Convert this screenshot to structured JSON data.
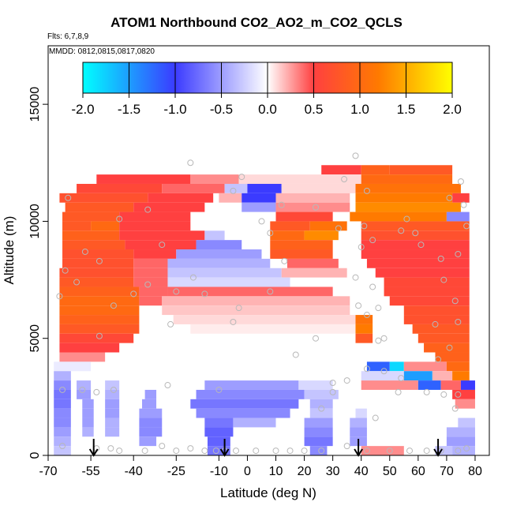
{
  "chart_data": {
    "type": "heatmap",
    "title": "ATOM1 Northbound CO2_AO2_m_CO2_QCLS",
    "flights_text": "Flts: 6,7,8,9",
    "mmdd_text": "MMDD: 0812,0815,0817,0820",
    "xlabel": "Latitude (deg N)",
    "ylabel": "Altitude (m)",
    "xlim": [
      -70,
      85
    ],
    "ylim": [
      0,
      17500
    ],
    "x_ticks": [
      -70,
      -55,
      -40,
      -25,
      -10,
      0,
      10,
      20,
      30,
      40,
      50,
      60,
      70,
      80
    ],
    "y_ticks": [
      0,
      5000,
      10000,
      15000
    ],
    "colorbar": {
      "ticks": [
        "-2.0",
        "-1.5",
        "-1.0",
        "-0.5",
        "0.0",
        "0.5",
        "1.0",
        "1.5",
        "2.0"
      ],
      "range": [
        -2.0,
        2.0
      ],
      "colors": [
        "#00ffff",
        "#3b3bff",
        "#ffffff",
        "#ff3b3b",
        "#ff8c00",
        "#ffff00"
      ]
    },
    "cell_height_m": 400,
    "rows": [
      {
        "alt": 12000,
        "segments": [
          [
            26,
            40,
            0.5
          ],
          [
            40,
            50,
            0.9
          ],
          [
            50,
            72,
            0.8
          ]
        ]
      },
      {
        "alt": 11600,
        "segments": [
          [
            -53,
            -20,
            0.5
          ],
          [
            -20,
            -3,
            0.3
          ],
          [
            -3,
            40,
            0.1
          ],
          [
            40,
            72,
            1.0
          ]
        ]
      },
      {
        "alt": 11200,
        "segments": [
          [
            -60,
            -30,
            0.6
          ],
          [
            -30,
            -8,
            0.4
          ],
          [
            -8,
            0,
            -0.3
          ],
          [
            0,
            12,
            -1.0
          ],
          [
            12,
            38,
            0.1
          ],
          [
            38,
            75,
            1.1
          ]
        ]
      },
      {
        "alt": 10800,
        "segments": [
          [
            -66,
            -35,
            0.7
          ],
          [
            -35,
            -12,
            0.5
          ],
          [
            -10,
            -2,
            0.2
          ],
          [
            -2,
            10,
            -1.0
          ],
          [
            10,
            36,
            0.2
          ],
          [
            38,
            72,
            1.2
          ],
          [
            72,
            78,
            0.5
          ]
        ]
      },
      {
        "alt": 10400,
        "segments": [
          [
            -64,
            -40,
            0.8
          ],
          [
            -40,
            -15,
            0.5
          ],
          [
            -2,
            10,
            -0.5
          ],
          [
            10,
            36,
            0.3
          ],
          [
            38,
            75,
            1.3
          ]
        ]
      },
      {
        "alt": 10000,
        "segments": [
          [
            -65,
            -45,
            0.8
          ],
          [
            -45,
            -20,
            0.5
          ],
          [
            10,
            30,
            0.6
          ],
          [
            36,
            70,
            1.2
          ],
          [
            70,
            78,
            -0.6
          ]
        ]
      },
      {
        "alt": 9600,
        "segments": [
          [
            -65,
            -55,
            0.8
          ],
          [
            -55,
            -45,
            1.0
          ],
          [
            -45,
            -20,
            0.5
          ],
          [
            8,
            22,
            0.8
          ],
          [
            22,
            35,
            1.1
          ],
          [
            40,
            78,
            0.8
          ]
        ]
      },
      {
        "alt": 9200,
        "segments": [
          [
            -65,
            -45,
            0.9
          ],
          [
            -45,
            -15,
            0.5
          ],
          [
            -15,
            -8,
            -0.3
          ],
          [
            8,
            20,
            1.0
          ],
          [
            20,
            32,
            1.3
          ],
          [
            40,
            78,
            0.7
          ]
        ]
      },
      {
        "alt": 8800,
        "segments": [
          [
            -65,
            -43,
            0.8
          ],
          [
            -43,
            -18,
            0.5
          ],
          [
            -18,
            -2,
            -0.6
          ],
          [
            8,
            30,
            0.9
          ],
          [
            40,
            78,
            0.5
          ]
        ]
      },
      {
        "alt": 8400,
        "segments": [
          [
            -65,
            -40,
            0.7
          ],
          [
            -40,
            -25,
            0.5
          ],
          [
            -25,
            5,
            -0.5
          ],
          [
            8,
            30,
            0.8
          ],
          [
            40,
            78,
            0.5
          ]
        ]
      },
      {
        "alt": 8000,
        "segments": [
          [
            -65,
            -40,
            0.7
          ],
          [
            -40,
            -28,
            0.4
          ],
          [
            -28,
            8,
            -0.4
          ],
          [
            14,
            32,
            0.4
          ],
          [
            42,
            78,
            0.5
          ]
        ]
      },
      {
        "alt": 7600,
        "segments": [
          [
            -66,
            -40,
            0.7
          ],
          [
            -40,
            -28,
            0.4
          ],
          [
            -28,
            12,
            -0.3
          ],
          [
            12,
            35,
            0.2
          ],
          [
            45,
            78,
            0.5
          ]
        ]
      },
      {
        "alt": 7200,
        "segments": [
          [
            -66,
            -40,
            0.8
          ],
          [
            -40,
            -28,
            0.4
          ],
          [
            -28,
            15,
            -0.2
          ],
          [
            48,
            78,
            0.6
          ]
        ]
      },
      {
        "alt": 6800,
        "segments": [
          [
            -66,
            -38,
            0.9
          ],
          [
            -38,
            -28,
            0.4
          ],
          [
            -28,
            30,
            0.4
          ],
          [
            48,
            78,
            0.6
          ]
        ]
      },
      {
        "alt": 6400,
        "segments": [
          [
            -66,
            -38,
            1.0
          ],
          [
            -38,
            -30,
            0.4
          ],
          [
            -30,
            36,
            0.2
          ],
          [
            50,
            78,
            0.6
          ]
        ]
      },
      {
        "alt": 6000,
        "segments": [
          [
            -66,
            -38,
            1.0
          ],
          [
            -30,
            36,
            0.15
          ],
          [
            55,
            78,
            0.7
          ]
        ]
      },
      {
        "alt": 5600,
        "segments": [
          [
            -66,
            -38,
            0.9
          ],
          [
            -26,
            38,
            0.1
          ],
          [
            38,
            44,
            1.1
          ],
          [
            55,
            78,
            0.7
          ]
        ]
      },
      {
        "alt": 5200,
        "segments": [
          [
            -66,
            -38,
            0.8
          ],
          [
            -20,
            38,
            0.05
          ],
          [
            38,
            44,
            1.2
          ],
          [
            58,
            78,
            0.8
          ]
        ]
      },
      {
        "alt": 4800,
        "segments": [
          [
            -66,
            -40,
            0.6
          ],
          [
            38,
            44,
            0.8
          ],
          [
            60,
            78,
            0.8
          ]
        ]
      },
      {
        "alt": 4400,
        "segments": [
          [
            -66,
            -45,
            0.5
          ],
          [
            62,
            78,
            0.9
          ]
        ]
      },
      {
        "alt": 4000,
        "segments": [
          [
            -66,
            -50,
            0.3
          ],
          [
            66,
            78,
            0.9
          ]
        ]
      },
      {
        "alt": 3600,
        "segments": [
          [
            -68,
            -55,
            -0.1
          ],
          [
            42,
            50,
            -1.2
          ],
          [
            50,
            55,
            -1.8
          ],
          [
            55,
            70,
            0.3
          ],
          [
            70,
            78,
            1.0
          ]
        ]
      },
      {
        "alt": 3200,
        "segments": [
          [
            -68,
            -62,
            -0.4
          ],
          [
            40,
            55,
            -0.2
          ],
          [
            55,
            65,
            -1.5
          ],
          [
            65,
            72,
            0.2
          ],
          [
            72,
            78,
            1.2
          ]
        ]
      },
      {
        "alt": 2800,
        "segments": [
          [
            -68,
            -62,
            -0.6
          ],
          [
            -60,
            -55,
            -0.4
          ],
          [
            -50,
            -45,
            -0.3
          ],
          [
            -15,
            18,
            -0.5
          ],
          [
            18,
            30,
            -0.2
          ],
          [
            40,
            60,
            0.3
          ],
          [
            60,
            68,
            -1.2
          ],
          [
            68,
            75,
            0.4
          ],
          [
            75,
            80,
            -1.0
          ]
        ]
      },
      {
        "alt": 2400,
        "segments": [
          [
            -68,
            -62,
            -0.7
          ],
          [
            -60,
            -55,
            -0.5
          ],
          [
            -50,
            -45,
            -0.4
          ],
          [
            -36,
            -32,
            -0.5
          ],
          [
            -18,
            20,
            -0.6
          ],
          [
            20,
            32,
            -0.3
          ],
          [
            72,
            80,
            0.5
          ]
        ]
      },
      {
        "alt": 2000,
        "segments": [
          [
            -68,
            -62,
            -0.7
          ],
          [
            -58,
            -54,
            -0.5
          ],
          [
            -50,
            -45,
            -0.5
          ],
          [
            -37,
            -32,
            -0.5
          ],
          [
            -20,
            18,
            -0.7
          ],
          [
            22,
            30,
            -0.4
          ],
          [
            73,
            80,
            0.3
          ]
        ]
      },
      {
        "alt": 1600,
        "segments": [
          [
            -68,
            -62,
            -0.6
          ],
          [
            -58,
            -54,
            -0.5
          ],
          [
            -50,
            -45,
            -0.5
          ],
          [
            -38,
            -30,
            -0.5
          ],
          [
            -18,
            15,
            -0.6
          ],
          [
            22,
            30,
            -0.3
          ],
          [
            38,
            42,
            -0.2
          ]
        ]
      },
      {
        "alt": 1200,
        "segments": [
          [
            -68,
            -62,
            -0.6
          ],
          [
            -58,
            -54,
            -0.5
          ],
          [
            -50,
            -45,
            -0.4
          ],
          [
            -38,
            -30,
            -0.6
          ],
          [
            -15,
            -5,
            -0.7
          ],
          [
            -5,
            10,
            -0.4
          ],
          [
            20,
            30,
            -0.5
          ],
          [
            36,
            42,
            -0.4
          ],
          [
            74,
            80,
            -0.3
          ]
        ]
      },
      {
        "alt": 800,
        "segments": [
          [
            -68,
            -62,
            -0.5
          ],
          [
            -58,
            -54,
            -0.4
          ],
          [
            -50,
            -45,
            -0.4
          ],
          [
            -38,
            -30,
            -0.6
          ],
          [
            -15,
            -5,
            -0.8
          ],
          [
            20,
            30,
            -0.6
          ],
          [
            36,
            42,
            -0.5
          ],
          [
            70,
            80,
            -0.4
          ]
        ]
      },
      {
        "alt": 400,
        "segments": [
          [
            -68,
            -62,
            -0.4
          ],
          [
            -38,
            -32,
            -0.5
          ],
          [
            -14,
            -6,
            -0.8
          ],
          [
            20,
            30,
            -0.7
          ],
          [
            36,
            42,
            -0.5
          ],
          [
            70,
            80,
            -0.5
          ]
        ]
      },
      {
        "alt": 0,
        "segments": [
          [
            -68,
            -62,
            -0.3
          ],
          [
            -14,
            -6,
            -0.7
          ],
          [
            22,
            28,
            -0.6
          ],
          [
            40,
            55,
            0.3
          ],
          [
            66,
            72,
            -0.3
          ],
          [
            72,
            80,
            -0.4
          ]
        ]
      }
    ],
    "sample_points": [
      [
        -63,
        11000
      ],
      [
        -57,
        8700
      ],
      [
        -52,
        8300
      ],
      [
        -45,
        10100
      ],
      [
        -40,
        6900
      ],
      [
        -35,
        10500
      ],
      [
        -47,
        6400
      ],
      [
        -52,
        5100
      ],
      [
        -66,
        6800
      ],
      [
        -64,
        7900
      ],
      [
        -60,
        7400
      ],
      [
        -47,
        2800
      ],
      [
        -65,
        2800
      ],
      [
        -58,
        2800
      ],
      [
        -53,
        2700
      ],
      [
        -28,
        3000
      ],
      [
        -10,
        2800
      ],
      [
        -5,
        5700
      ],
      [
        -3,
        6300
      ],
      [
        5,
        10000
      ],
      [
        12,
        10700
      ],
      [
        8,
        9500
      ],
      [
        8,
        7000
      ],
      [
        13,
        8300
      ],
      [
        -25,
        7000
      ],
      [
        -19,
        7600
      ],
      [
        -35,
        7300
      ],
      [
        -15,
        6900
      ],
      [
        17,
        4300
      ],
      [
        24,
        5000
      ],
      [
        30,
        3100
      ],
      [
        30,
        2700
      ],
      [
        26,
        2000
      ],
      [
        38,
        7600
      ],
      [
        39,
        6400
      ],
      [
        42,
        6000
      ],
      [
        46,
        4900
      ],
      [
        48,
        5000
      ],
      [
        46,
        6300
      ],
      [
        44,
        9200
      ],
      [
        56,
        10100
      ],
      [
        40,
        8900
      ],
      [
        38,
        12800
      ],
      [
        34,
        11800
      ],
      [
        41,
        9800
      ],
      [
        59,
        9500
      ],
      [
        61,
        9000
      ],
      [
        54,
        9600
      ],
      [
        71,
        11000
      ],
      [
        75,
        11700
      ],
      [
        76,
        10700
      ],
      [
        77,
        9800
      ],
      [
        74,
        8600
      ],
      [
        68,
        8400
      ],
      [
        69,
        7500
      ],
      [
        73,
        6600
      ],
      [
        74,
        5700
      ],
      [
        71,
        4600
      ],
      [
        66,
        5600
      ],
      [
        67,
        4100
      ],
      [
        69,
        2600
      ],
      [
        73,
        2000
      ],
      [
        74,
        2600
      ],
      [
        63,
        2700
      ],
      [
        53,
        2700
      ],
      [
        54,
        3300
      ],
      [
        48,
        3600
      ],
      [
        42,
        3700
      ],
      [
        35,
        3200
      ],
      [
        45,
        1600
      ],
      [
        -65,
        400
      ],
      [
        -53,
        300
      ],
      [
        -48,
        300
      ],
      [
        -45,
        200
      ],
      [
        -36,
        200
      ],
      [
        -30,
        400
      ],
      [
        -25,
        200
      ],
      [
        -20,
        300
      ],
      [
        -15,
        200
      ],
      [
        -11,
        200
      ],
      [
        -8,
        200
      ],
      [
        -4,
        200
      ],
      [
        3,
        200
      ],
      [
        10,
        200
      ],
      [
        15,
        200
      ],
      [
        20,
        200
      ],
      [
        26,
        200
      ],
      [
        35,
        400
      ],
      [
        42,
        200
      ],
      [
        50,
        200
      ],
      [
        57,
        200
      ],
      [
        63,
        200
      ],
      [
        68,
        200
      ],
      [
        74,
        200
      ],
      [
        77,
        300
      ],
      [
        -2,
        11900
      ],
      [
        -20,
        12500
      ],
      [
        -5,
        11300
      ],
      [
        24,
        10600
      ],
      [
        32,
        9700
      ],
      [
        42,
        11300
      ],
      [
        44,
        7200
      ],
      [
        -30,
        9000
      ],
      [
        -27,
        5600
      ]
    ],
    "arrows_lat": [
      -54,
      -8,
      39,
      67
    ]
  }
}
